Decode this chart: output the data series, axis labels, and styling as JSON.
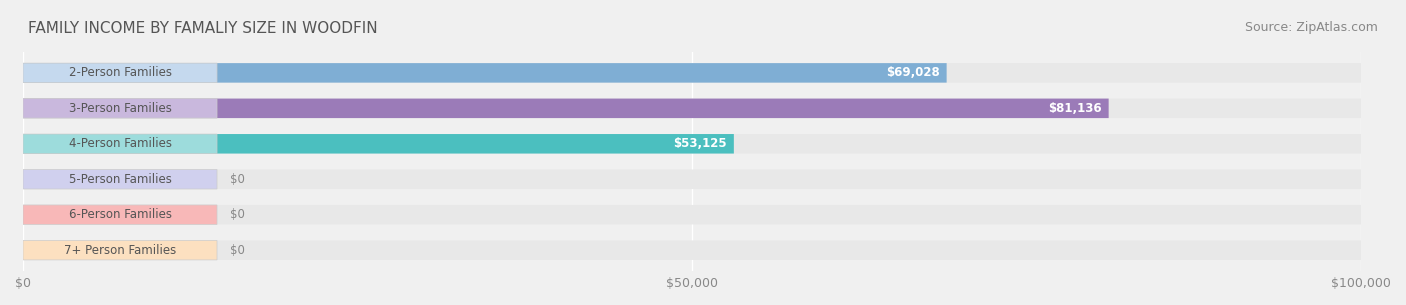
{
  "title": "FAMILY INCOME BY FAMALIY SIZE IN WOODFIN",
  "source": "Source: ZipAtlas.com",
  "categories": [
    "2-Person Families",
    "3-Person Families",
    "4-Person Families",
    "5-Person Families",
    "6-Person Families",
    "7+ Person Families"
  ],
  "values": [
    69028,
    81136,
    53125,
    0,
    0,
    0
  ],
  "bar_colors": [
    "#7faed4",
    "#9b7bb8",
    "#4bbfbf",
    "#aaaadd",
    "#f08080",
    "#f5c89a"
  ],
  "label_bg_colors": [
    "#c5d9ee",
    "#c9b8dd",
    "#9ddcdc",
    "#d0d0ee",
    "#f8b8b8",
    "#fce0c0"
  ],
  "value_labels": [
    "$69,028",
    "$81,136",
    "$53,125",
    "$0",
    "$0",
    "$0"
  ],
  "xlim": [
    0,
    100000
  ],
  "xticks": [
    0,
    50000,
    100000
  ],
  "xtick_labels": [
    "$0",
    "$50,000",
    "$100,000"
  ],
  "background_color": "#f0f0f0",
  "bar_bg_color": "#e8e8e8",
  "title_fontsize": 11,
  "source_fontsize": 9,
  "tick_fontsize": 9,
  "bar_label_fontsize": 8.5,
  "value_label_fontsize": 8.5
}
